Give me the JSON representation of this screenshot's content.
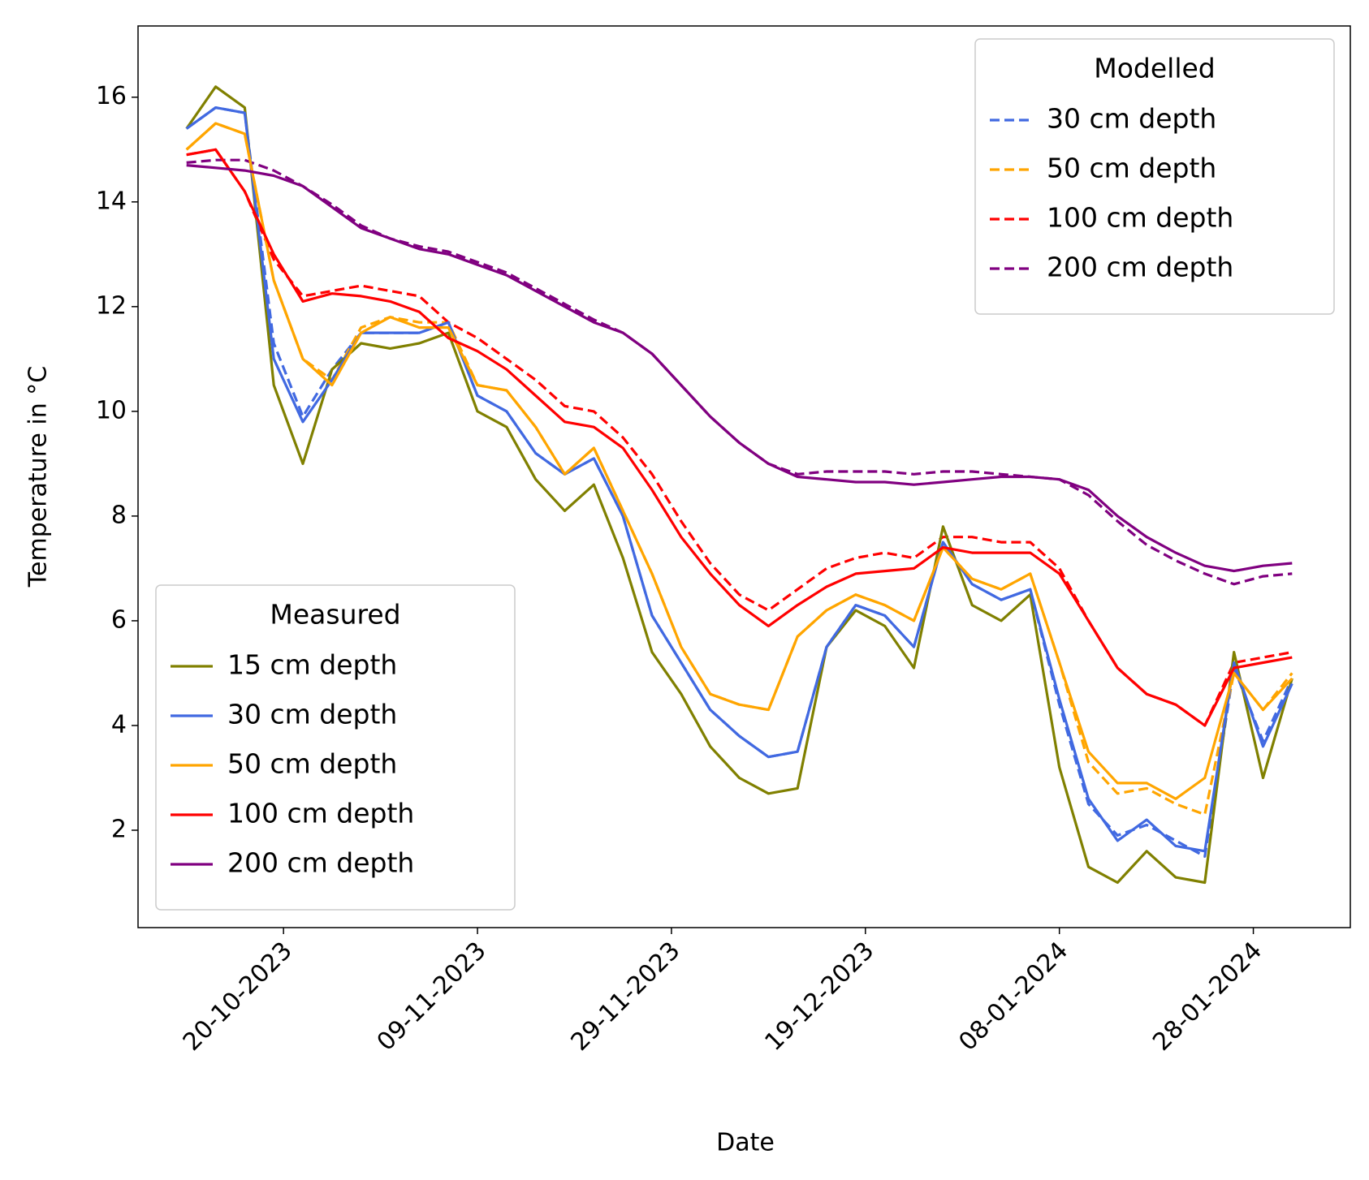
{
  "chart_data": {
    "type": "line",
    "xlabel": "Date",
    "ylabel": "Temperature in °C",
    "x": [
      "2023-10-10",
      "2023-10-13",
      "2023-10-16",
      "2023-10-19",
      "2023-10-22",
      "2023-10-25",
      "2023-10-28",
      "2023-10-31",
      "2023-11-03",
      "2023-11-06",
      "2023-11-09",
      "2023-11-12",
      "2023-11-15",
      "2023-11-18",
      "2023-11-21",
      "2023-11-24",
      "2023-11-27",
      "2023-11-30",
      "2023-12-03",
      "2023-12-06",
      "2023-12-09",
      "2023-12-12",
      "2023-12-15",
      "2023-12-18",
      "2023-12-21",
      "2023-12-24",
      "2023-12-27",
      "2023-12-30",
      "2024-01-02",
      "2024-01-05",
      "2024-01-08",
      "2024-01-11",
      "2024-01-14",
      "2024-01-17",
      "2024-01-20",
      "2024-01-23",
      "2024-01-26",
      "2024-01-29",
      "2024-02-01"
    ],
    "xlim": [
      "2023-10-05",
      "2024-02-07"
    ],
    "xticks": [
      {
        "value": "2023-10-20",
        "label": "20-10-2023"
      },
      {
        "value": "2023-11-09",
        "label": "09-11-2023"
      },
      {
        "value": "2023-11-29",
        "label": "29-11-2023"
      },
      {
        "value": "2023-12-19",
        "label": "19-12-2023"
      },
      {
        "value": "2024-01-08",
        "label": "08-01-2024"
      },
      {
        "value": "2024-01-28",
        "label": "28-01-2024"
      }
    ],
    "ylim": [
      0.14,
      17.36
    ],
    "yticks": [
      2,
      4,
      6,
      8,
      10,
      12,
      14,
      16
    ],
    "grid": false,
    "groups": [
      {
        "title": "Modelled",
        "legend_loc": "upper right",
        "linestyle": "dashed",
        "series": [
          {
            "name": "30 cm depth",
            "color": "#4169e1",
            "values": [
              15.4,
              15.8,
              15.7,
              11.3,
              9.9,
              10.8,
              11.5,
              11.5,
              11.5,
              11.7,
              10.3,
              10.0,
              9.2,
              8.8,
              9.1,
              8.0,
              6.1,
              5.2,
              4.3,
              3.8,
              3.4,
              3.5,
              5.5,
              6.3,
              6.1,
              5.5,
              7.5,
              6.7,
              6.4,
              6.6,
              4.4,
              2.5,
              1.9,
              2.1,
              1.8,
              1.5,
              5.1,
              3.7,
              4.9
            ]
          },
          {
            "name": "50 cm depth",
            "color": "#ffa500",
            "values": [
              15.0,
              15.5,
              15.3,
              12.5,
              11.0,
              10.6,
              11.6,
              11.8,
              11.7,
              11.7,
              10.5,
              10.4,
              9.7,
              8.8,
              9.3,
              8.1,
              6.9,
              5.5,
              4.6,
              4.4,
              4.3,
              5.7,
              6.2,
              6.5,
              6.3,
              6.0,
              7.4,
              6.8,
              6.6,
              6.9,
              5.2,
              3.3,
              2.7,
              2.8,
              2.5,
              2.3,
              5.0,
              4.3,
              5.0
            ]
          },
          {
            "name": "100 cm depth",
            "color": "#ff0000",
            "values": [
              14.9,
              15.0,
              14.2,
              12.9,
              12.2,
              12.3,
              12.4,
              12.3,
              12.2,
              11.7,
              11.4,
              11.0,
              10.6,
              10.1,
              10.0,
              9.5,
              8.8,
              7.9,
              7.1,
              6.5,
              6.2,
              6.6,
              7.0,
              7.2,
              7.3,
              7.2,
              7.6,
              7.6,
              7.5,
              7.5,
              7.0,
              6.0,
              5.1,
              4.6,
              4.4,
              4.0,
              5.2,
              5.3,
              5.4
            ]
          },
          {
            "name": "200 cm depth",
            "color": "#800080",
            "values": [
              14.75,
              14.8,
              14.8,
              14.6,
              14.3,
              13.95,
              13.55,
              13.3,
              13.15,
              13.05,
              12.85,
              12.65,
              12.35,
              12.05,
              11.75,
              11.5,
              11.1,
              10.5,
              9.9,
              9.4,
              9.0,
              8.8,
              8.85,
              8.85,
              8.85,
              8.8,
              8.85,
              8.85,
              8.8,
              8.75,
              8.7,
              8.4,
              7.9,
              7.45,
              7.15,
              6.9,
              6.7,
              6.85,
              6.9
            ]
          }
        ]
      },
      {
        "title": "Measured",
        "legend_loc": "lower left",
        "linestyle": "solid",
        "series": [
          {
            "name": "15 cm depth",
            "color": "#808000",
            "values": [
              15.4,
              16.2,
              15.8,
              10.5,
              9.0,
              10.8,
              11.3,
              11.2,
              11.3,
              11.5,
              10.0,
              9.7,
              8.7,
              8.1,
              8.6,
              7.2,
              5.4,
              4.6,
              3.6,
              3.0,
              2.7,
              2.8,
              5.5,
              6.2,
              5.9,
              5.1,
              7.8,
              6.3,
              6.0,
              6.5,
              3.2,
              1.3,
              1.0,
              1.6,
              1.1,
              1.0,
              5.4,
              3.0,
              4.9
            ]
          },
          {
            "name": "30 cm depth",
            "color": "#4169e1",
            "values": [
              15.4,
              15.8,
              15.7,
              11.0,
              9.8,
              10.6,
              11.5,
              11.5,
              11.5,
              11.7,
              10.3,
              10.0,
              9.2,
              8.8,
              9.1,
              8.0,
              6.1,
              5.2,
              4.3,
              3.8,
              3.4,
              3.5,
              5.5,
              6.3,
              6.1,
              5.5,
              7.5,
              6.7,
              6.4,
              6.6,
              4.5,
              2.6,
              1.8,
              2.2,
              1.7,
              1.6,
              5.2,
              3.6,
              4.8
            ]
          },
          {
            "name": "50 cm depth",
            "color": "#ffa500",
            "values": [
              15.0,
              15.5,
              15.3,
              12.5,
              11.0,
              10.5,
              11.5,
              11.8,
              11.6,
              11.6,
              10.5,
              10.4,
              9.7,
              8.8,
              9.3,
              8.1,
              6.9,
              5.5,
              4.6,
              4.4,
              4.3,
              5.7,
              6.2,
              6.5,
              6.3,
              6.0,
              7.4,
              6.8,
              6.6,
              6.9,
              5.2,
              3.5,
              2.9,
              2.9,
              2.6,
              3.0,
              5.0,
              4.3,
              4.9
            ]
          },
          {
            "name": "100 cm depth",
            "color": "#ff0000",
            "values": [
              14.9,
              15.0,
              14.2,
              13.0,
              12.1,
              12.25,
              12.2,
              12.1,
              11.9,
              11.4,
              11.15,
              10.8,
              10.3,
              9.8,
              9.7,
              9.3,
              8.5,
              7.6,
              6.9,
              6.3,
              5.9,
              6.3,
              6.65,
              6.9,
              6.95,
              7.0,
              7.4,
              7.3,
              7.3,
              7.3,
              6.9,
              6.0,
              5.1,
              4.6,
              4.4,
              4.0,
              5.1,
              5.2,
              5.3
            ]
          },
          {
            "name": "200 cm depth",
            "color": "#800080",
            "values": [
              14.7,
              14.65,
              14.6,
              14.5,
              14.3,
              13.9,
              13.5,
              13.3,
              13.1,
              13.0,
              12.8,
              12.6,
              12.3,
              12.0,
              11.7,
              11.5,
              11.1,
              10.5,
              9.9,
              9.4,
              9.0,
              8.75,
              8.7,
              8.65,
              8.65,
              8.6,
              8.65,
              8.7,
              8.75,
              8.75,
              8.7,
              8.5,
              8.0,
              7.6,
              7.3,
              7.05,
              6.95,
              7.05,
              7.1
            ]
          }
        ]
      }
    ]
  }
}
